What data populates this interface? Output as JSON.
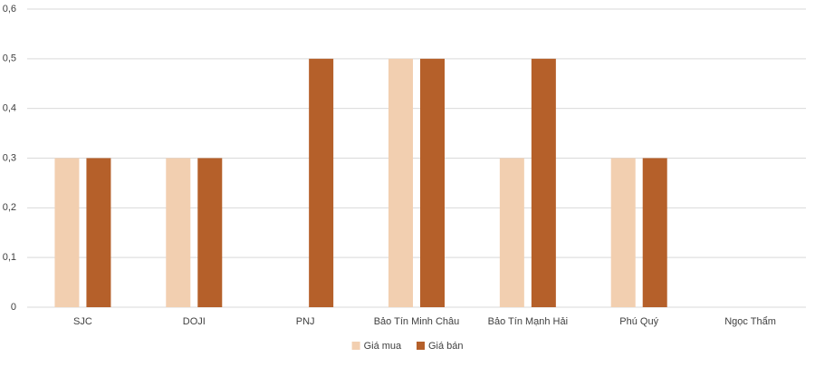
{
  "chart_data": {
    "type": "bar",
    "categories": [
      "SJC",
      "DOJI",
      "PNJ",
      "Bảo Tín Minh Châu",
      "Bảo Tín Mạnh Hải",
      "Phú Quý",
      "Ngọc Thẩm"
    ],
    "series": [
      {
        "name": "Giá mua",
        "color": "#f2cfb0",
        "values": [
          0.3,
          0.3,
          0,
          0.5,
          0.3,
          0.3,
          0
        ]
      },
      {
        "name": "Giá bán",
        "color": "#b5602a",
        "values": [
          0.3,
          0.3,
          0.5,
          0.5,
          0.5,
          0.3,
          0
        ]
      }
    ],
    "ylim": [
      0,
      0.6
    ],
    "yticks": [
      0,
      {
        "value": 0.1,
        "label": "0,1"
      },
      {
        "value": 0.2,
        "label": "0,2"
      },
      {
        "value": 0.3,
        "label": "0,3"
      },
      {
        "value": 0.4,
        "label": "0,4"
      },
      {
        "value": 0.5,
        "label": "0,5"
      },
      {
        "value": 0.6,
        "label": "0,6"
      }
    ],
    "grid": true,
    "legend": "bottom"
  }
}
